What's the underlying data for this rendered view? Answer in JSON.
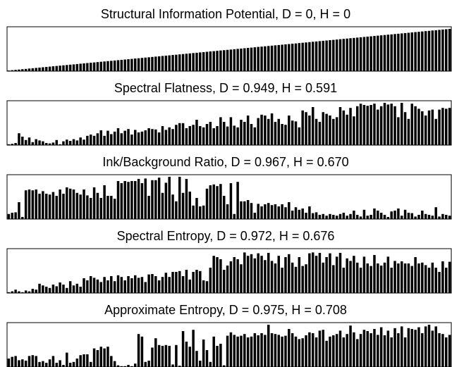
{
  "chart_data": [
    {
      "type": "bar",
      "title": "Structural Information Potential, D = 0, H = 0",
      "xlabel": "",
      "ylabel": "",
      "ylim": [
        0,
        1
      ],
      "values": [
        0.015,
        0.023,
        0.03,
        0.038,
        0.046,
        0.053,
        0.061,
        0.069,
        0.076,
        0.084,
        0.092,
        0.099,
        0.107,
        0.115,
        0.122,
        0.13,
        0.138,
        0.145,
        0.153,
        0.16,
        0.168,
        0.176,
        0.183,
        0.191,
        0.199,
        0.206,
        0.214,
        0.222,
        0.229,
        0.237,
        0.244,
        0.252,
        0.26,
        0.267,
        0.275,
        0.283,
        0.29,
        0.298,
        0.305,
        0.313,
        0.321,
        0.328,
        0.336,
        0.344,
        0.351,
        0.359,
        0.367,
        0.374,
        0.382,
        0.389,
        0.397,
        0.405,
        0.412,
        0.42,
        0.428,
        0.435,
        0.443,
        0.45,
        0.458,
        0.466,
        0.473,
        0.481,
        0.489,
        0.496,
        0.504,
        0.511,
        0.519,
        0.527,
        0.534,
        0.542,
        0.55,
        0.557,
        0.565,
        0.573,
        0.58,
        0.588,
        0.595,
        0.603,
        0.611,
        0.618,
        0.626,
        0.634,
        0.641,
        0.649,
        0.656,
        0.664,
        0.672,
        0.679,
        0.687,
        0.695,
        0.702,
        0.71,
        0.718,
        0.725,
        0.733,
        0.74,
        0.748,
        0.756,
        0.763,
        0.771,
        0.779,
        0.786,
        0.794,
        0.802,
        0.809,
        0.817,
        0.824,
        0.832,
        0.84,
        0.847,
        0.855,
        0.863,
        0.87,
        0.878,
        0.885,
        0.893,
        0.901,
        0.908,
        0.916,
        0.924,
        0.931,
        0.939,
        0.947,
        0.954,
        0.962,
        0.969,
        0.977,
        0.985,
        0.992,
        1.0
      ]
    },
    {
      "type": "bar",
      "title": "Spectral Flatness, D = 0.949, H = 0.591",
      "xlabel": "",
      "ylabel": "",
      "ylim": [
        0,
        1
      ],
      "values": [
        0.02,
        0.03,
        0.05,
        0.28,
        0.2,
        0.12,
        0.18,
        0.07,
        0.14,
        0.11,
        0.09,
        0.05,
        0.04,
        0.06,
        0.12,
        0.02,
        0.09,
        0.13,
        0.1,
        0.14,
        0.11,
        0.18,
        0.13,
        0.22,
        0.25,
        0.22,
        0.28,
        0.35,
        0.22,
        0.34,
        0.26,
        0.32,
        0.4,
        0.28,
        0.34,
        0.38,
        0.25,
        0.36,
        0.3,
        0.32,
        0.35,
        0.4,
        0.38,
        0.37,
        0.3,
        0.45,
        0.36,
        0.42,
        0.38,
        0.48,
        0.52,
        0.52,
        0.4,
        0.45,
        0.48,
        0.6,
        0.45,
        0.42,
        0.5,
        0.55,
        0.4,
        0.45,
        0.66,
        0.55,
        0.44,
        0.66,
        0.46,
        0.42,
        0.6,
        0.55,
        0.7,
        0.5,
        0.42,
        0.64,
        0.72,
        0.7,
        0.62,
        0.75,
        0.55,
        0.62,
        0.5,
        0.48,
        0.7,
        0.58,
        0.56,
        0.42,
        0.82,
        0.78,
        0.7,
        0.9,
        0.62,
        0.55,
        0.78,
        0.74,
        0.7,
        0.62,
        0.66,
        0.9,
        0.82,
        0.72,
        0.88,
        0.68,
        0.92,
        0.98,
        0.95,
        0.93,
        0.95,
        0.98,
        0.84,
        0.92,
        1.0,
        0.96,
        0.98,
        0.92,
        0.66,
        1.0,
        0.78,
        0.62,
        0.98,
        0.92,
        0.86,
        0.8,
        0.7,
        0.82,
        0.84,
        0.62,
        0.84,
        0.88,
        0.86,
        0.88
      ]
    },
    {
      "type": "bar",
      "title": "Ink/Background Ratio, D = 0.967, H = 0.670",
      "xlabel": "",
      "ylabel": "",
      "ylim": [
        0,
        1
      ],
      "values": [
        0.12,
        0.15,
        0.16,
        0.4,
        0.05,
        0.68,
        0.7,
        0.68,
        0.7,
        0.6,
        0.66,
        0.6,
        0.58,
        0.64,
        0.55,
        0.7,
        0.6,
        0.75,
        0.72,
        0.7,
        0.62,
        0.58,
        0.7,
        0.56,
        0.5,
        0.75,
        0.62,
        0.5,
        0.8,
        0.55,
        0.55,
        0.48,
        0.9,
        0.85,
        0.9,
        0.88,
        0.9,
        0.9,
        0.95,
        0.85,
        0.96,
        0.55,
        0.92,
        0.92,
        0.98,
        0.62,
        0.86,
        1.0,
        0.58,
        0.42,
        1.0,
        0.62,
        0.95,
        0.65,
        0.32,
        0.5,
        0.3,
        0.32,
        0.72,
        0.8,
        0.82,
        0.78,
        0.83,
        0.55,
        0.35,
        0.85,
        0.12,
        0.88,
        0.42,
        0.42,
        0.45,
        0.38,
        0.15,
        0.36,
        0.3,
        0.35,
        0.38,
        0.33,
        0.35,
        0.3,
        0.35,
        0.28,
        0.4,
        0.2,
        0.28,
        0.22,
        0.25,
        0.15,
        0.3,
        0.14,
        0.16,
        0.1,
        0.12,
        0.08,
        0.12,
        0.1,
        0.08,
        0.12,
        0.15,
        0.08,
        0.12,
        0.2,
        0.1,
        0.06,
        0.22,
        0.08,
        0.1,
        0.25,
        0.2,
        0.15,
        0.1,
        0.05,
        0.18,
        0.2,
        0.25,
        0.08,
        0.22,
        0.15,
        0.14,
        0.06,
        0.1,
        0.2,
        0.12,
        0.1,
        0.08,
        0.28,
        0.06,
        0.12,
        0.1,
        0.08
      ]
    },
    {
      "type": "bar",
      "title": "Spectral Entropy, D = 0.972, H = 0.676",
      "xlabel": "",
      "ylabel": "",
      "ylim": [
        0,
        1
      ],
      "values": [
        0.02,
        0.04,
        0.08,
        0.04,
        0.02,
        0.06,
        0.04,
        0.1,
        0.08,
        0.22,
        0.18,
        0.15,
        0.12,
        0.2,
        0.16,
        0.25,
        0.2,
        0.12,
        0.28,
        0.18,
        0.22,
        0.15,
        0.35,
        0.3,
        0.4,
        0.36,
        0.32,
        0.26,
        0.38,
        0.3,
        0.4,
        0.28,
        0.42,
        0.38,
        0.3,
        0.4,
        0.35,
        0.42,
        0.36,
        0.38,
        0.26,
        0.44,
        0.45,
        0.4,
        0.3,
        0.38,
        0.48,
        0.38,
        0.5,
        0.5,
        0.52,
        0.4,
        0.55,
        0.32,
        0.5,
        0.55,
        0.52,
        0.3,
        0.28,
        0.6,
        0.88,
        0.85,
        0.8,
        0.55,
        0.65,
        0.75,
        0.85,
        0.8,
        0.68,
        0.96,
        0.88,
        0.92,
        0.82,
        0.94,
        0.88,
        0.78,
        0.95,
        0.76,
        0.7,
        0.88,
        0.6,
        0.85,
        0.92,
        0.72,
        0.62,
        0.85,
        0.64,
        0.68,
        0.94,
        0.96,
        0.88,
        0.95,
        0.72,
        0.85,
        0.94,
        0.66,
        0.86,
        0.95,
        0.6,
        0.82,
        0.76,
        0.88,
        0.72,
        0.6,
        0.86,
        0.7,
        0.64,
        0.9,
        0.7,
        0.65,
        0.72,
        0.86,
        0.6,
        0.76,
        0.7,
        0.75,
        0.7,
        0.7,
        0.64,
        0.85,
        0.7,
        0.72,
        0.66,
        0.6,
        0.72,
        0.6,
        0.5,
        0.75,
        0.6,
        0.74
      ]
    },
    {
      "type": "bar",
      "title": "Approximate Entropy, D = 0.975, H = 0.708",
      "xlabel": "",
      "ylabel": "",
      "ylim": [
        0,
        1
      ],
      "values": [
        0.2,
        0.24,
        0.26,
        0.16,
        0.18,
        0.15,
        0.26,
        0.28,
        0.26,
        0.12,
        0.14,
        0.1,
        0.18,
        0.26,
        0.1,
        0.16,
        0.05,
        0.34,
        0.1,
        0.12,
        0.2,
        0.28,
        0.3,
        0.3,
        0.12,
        0.44,
        0.4,
        0.48,
        0.44,
        0.48,
        0.26,
        0.14,
        0.04,
        0.02,
        0.02,
        0.05,
        0.02,
        0.08,
        0.78,
        0.72,
        0.12,
        0.15,
        0.46,
        0.68,
        0.52,
        0.5,
        0.52,
        0.5,
        0.06,
        0.52,
        0.03,
        0.85,
        0.6,
        0.48,
        0.88,
        0.38,
        0.15,
        0.65,
        0.4,
        0.12,
        0.72,
        0.5,
        0.55,
        0.04,
        0.74,
        0.82,
        0.76,
        0.72,
        0.74,
        0.78,
        0.7,
        0.72,
        0.8,
        0.75,
        0.8,
        0.76,
        1.0,
        0.8,
        0.78,
        0.76,
        0.72,
        0.74,
        0.9,
        0.8,
        0.72,
        0.66,
        0.68,
        0.75,
        0.82,
        0.8,
        0.7,
        0.86,
        0.88,
        0.62,
        0.72,
        0.75,
        0.78,
        0.86,
        0.7,
        0.78,
        0.98,
        0.82,
        0.66,
        0.78,
        0.88,
        0.85,
        0.8,
        0.9,
        0.76,
        0.94,
        0.75,
        0.86,
        0.7,
        0.92,
        0.8,
        0.96,
        0.7,
        0.92,
        0.9,
        0.88,
        0.94,
        0.8,
        0.96,
        1.0,
        0.86,
        0.96,
        0.8,
        0.78,
        0.7,
        0.76
      ]
    }
  ]
}
